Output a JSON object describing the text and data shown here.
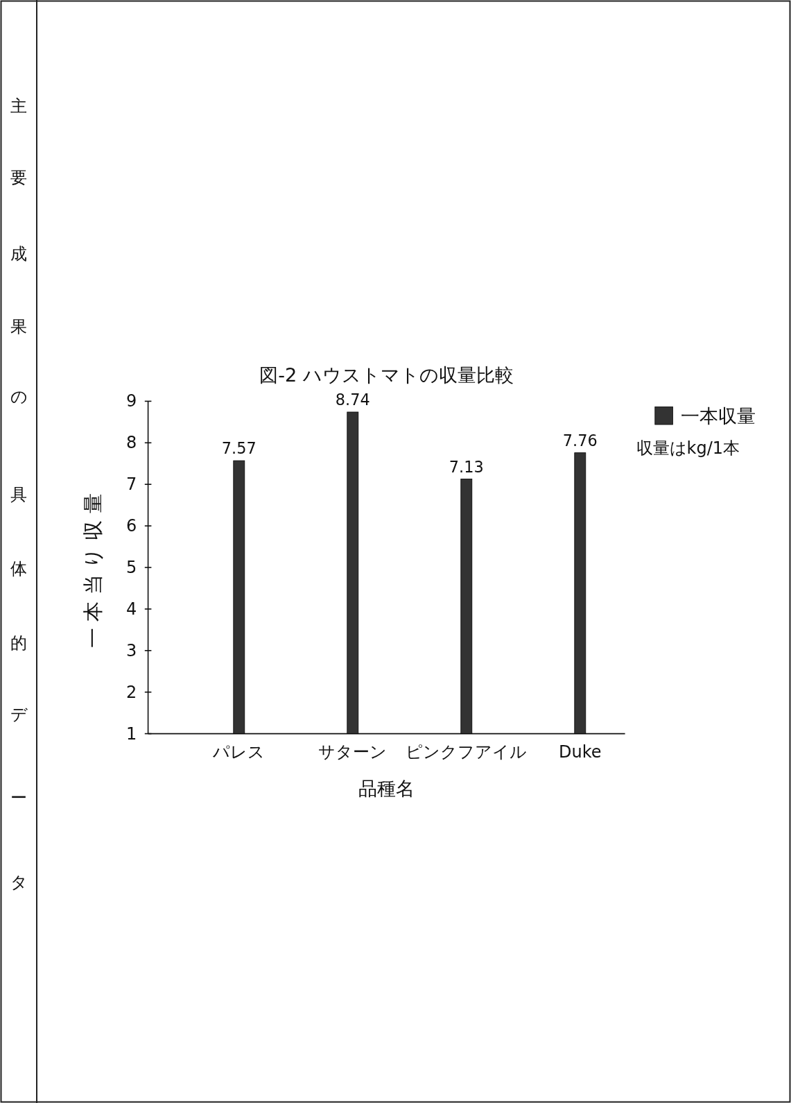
{
  "chart_data": {
    "type": "bar",
    "title": "図-2 ハウストマトの収量比較",
    "xlabel": "品種名",
    "ylabel": "一本当り収量",
    "categories": [
      "パレス",
      "サターン",
      "ピンクフアイル",
      "Duke"
    ],
    "series": [
      {
        "name": "一本収量",
        "color": "#333333",
        "values": [
          7.57,
          8.74,
          7.13,
          7.76
        ]
      }
    ],
    "ylim": [
      1,
      9
    ],
    "yticks": [
      1,
      2,
      3,
      4,
      5,
      6,
      7,
      8,
      9
    ],
    "data_labels": true,
    "legend": "top right",
    "annotations": [
      "収量はkg/1本",
      "主要成果の具体的データ"
    ]
  }
}
